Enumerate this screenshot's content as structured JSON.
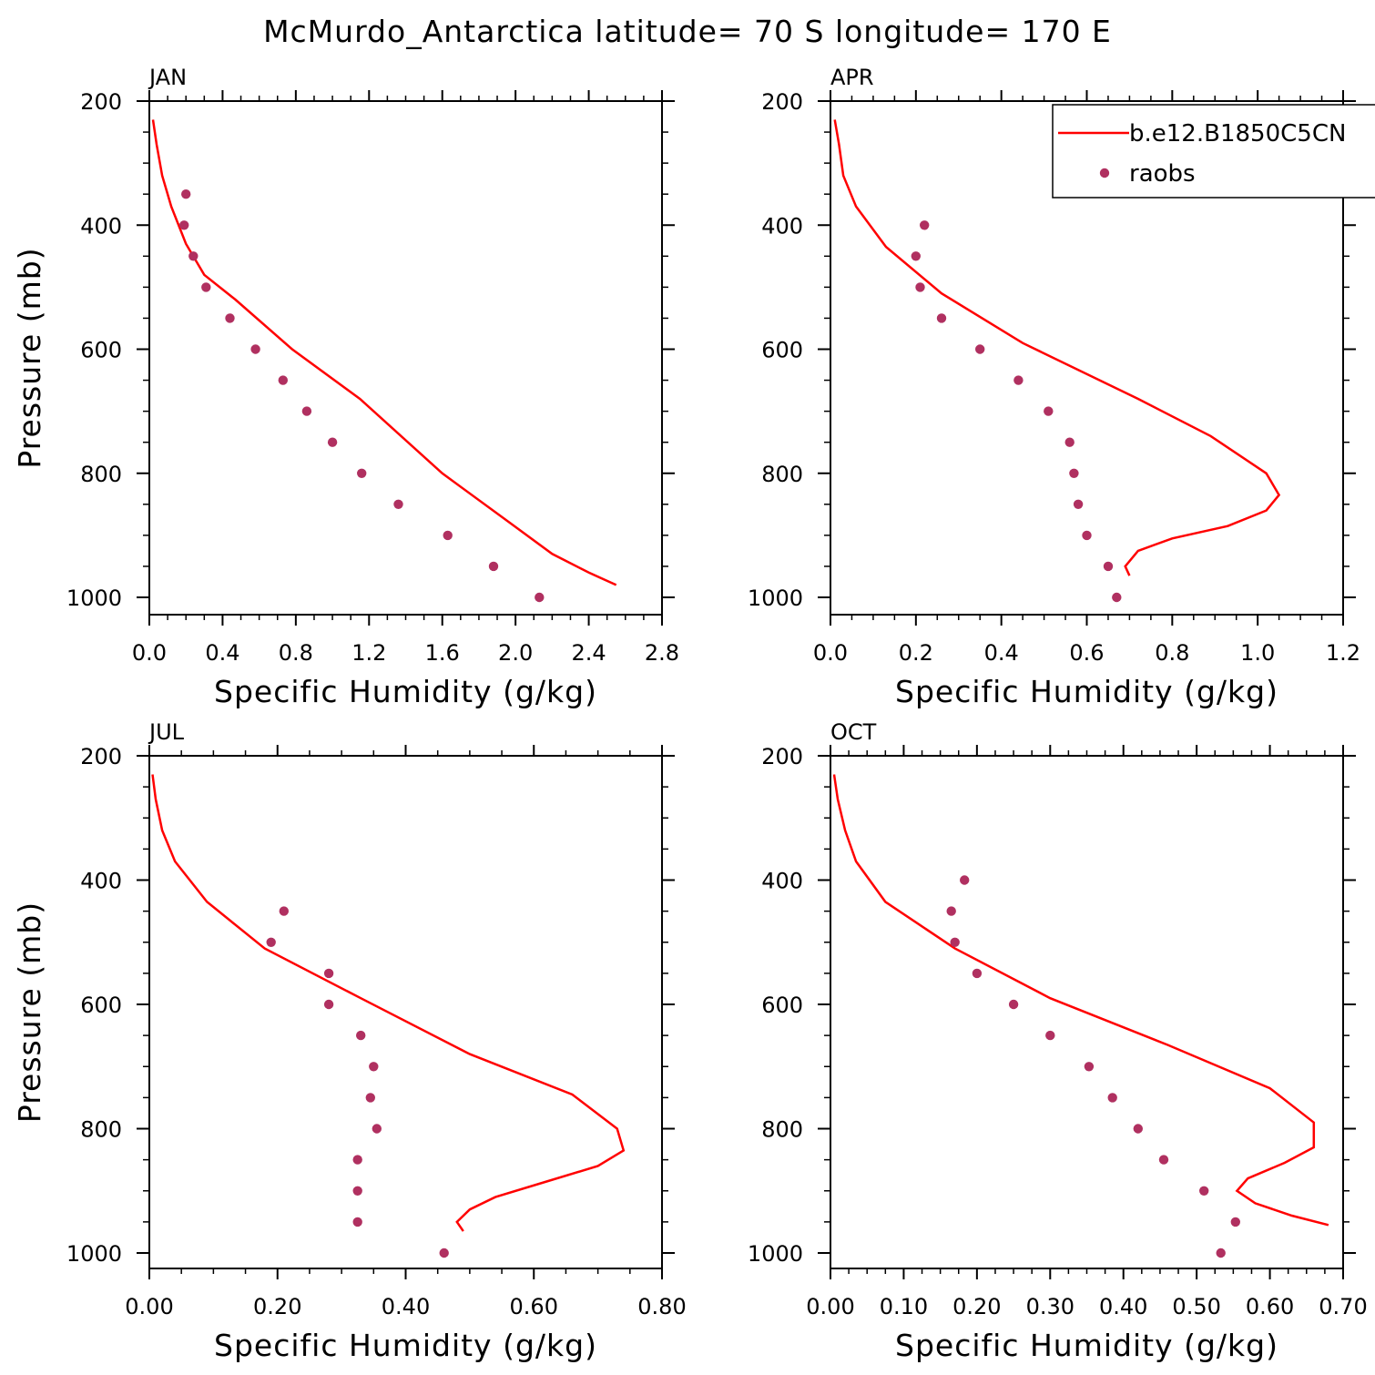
{
  "title": "McMurdo_Antarctica  latitude= 70 S longitude= 170 E",
  "colors": {
    "model_line": "#ff0000",
    "obs_marker": "#b03060",
    "axes": "#000000"
  },
  "legend": {
    "entries": [
      {
        "label": "b.e12.B1850C5CN",
        "marker": "line"
      },
      {
        "label": "raobs",
        "marker": "dot"
      }
    ],
    "placement": "top-right of APR panel"
  },
  "chart_data": [
    {
      "type": "line+scatter",
      "panel": "JAN",
      "xlabel": "Specific Humidity (g/kg)",
      "ylabel": "Pressure (mb)",
      "xlim": [
        0,
        2.8
      ],
      "ylim": [
        200,
        1030
      ],
      "y_inverted": true,
      "xticks": [
        "0.0",
        "0.4",
        "0.8",
        "1.2",
        "1.6",
        "2.0",
        "2.4",
        "2.8"
      ],
      "yticks": [
        "200",
        "400",
        "600",
        "800",
        "1000"
      ],
      "series": [
        {
          "name": "b.e12.B1850C5CN",
          "kind": "line",
          "points": [
            [
              0.02,
              230
            ],
            [
              0.04,
              270
            ],
            [
              0.07,
              320
            ],
            [
              0.12,
              370
            ],
            [
              0.2,
              430
            ],
            [
              0.3,
              480
            ],
            [
              0.47,
              520
            ],
            [
              0.78,
              600
            ],
            [
              1.15,
              680
            ],
            [
              1.6,
              800
            ],
            [
              1.97,
              880
            ],
            [
              2.2,
              930
            ],
            [
              2.4,
              960
            ],
            [
              2.55,
              980
            ]
          ]
        },
        {
          "name": "raobs",
          "kind": "scatter",
          "points": [
            [
              0.2,
              350
            ],
            [
              0.19,
              400
            ],
            [
              0.24,
              450
            ],
            [
              0.31,
              500
            ],
            [
              0.44,
              550
            ],
            [
              0.58,
              600
            ],
            [
              0.73,
              650
            ],
            [
              0.86,
              700
            ],
            [
              1.0,
              750
            ],
            [
              1.16,
              800
            ],
            [
              1.36,
              850
            ],
            [
              1.63,
              900
            ],
            [
              1.88,
              950
            ],
            [
              2.13,
              1000
            ]
          ]
        }
      ]
    },
    {
      "type": "line+scatter",
      "panel": "APR",
      "xlabel": "Specific Humidity (g/kg)",
      "ylabel": "Pressure (mb)",
      "xlim": [
        0,
        1.2
      ],
      "ylim": [
        200,
        1030
      ],
      "y_inverted": true,
      "xticks": [
        "0.0",
        "0.2",
        "0.4",
        "0.6",
        "0.8",
        "1.0",
        "1.2"
      ],
      "yticks": [
        "200",
        "400",
        "600",
        "800",
        "1000"
      ],
      "series": [
        {
          "name": "b.e12.B1850C5CN",
          "kind": "line",
          "points": [
            [
              0.01,
              230
            ],
            [
              0.02,
              270
            ],
            [
              0.03,
              320
            ],
            [
              0.06,
              370
            ],
            [
              0.13,
              435
            ],
            [
              0.26,
              510
            ],
            [
              0.45,
              590
            ],
            [
              0.72,
              680
            ],
            [
              0.89,
              740
            ],
            [
              1.02,
              800
            ],
            [
              1.05,
              835
            ],
            [
              1.02,
              860
            ],
            [
              0.93,
              885
            ],
            [
              0.8,
              905
            ],
            [
              0.72,
              925
            ],
            [
              0.69,
              950
            ],
            [
              0.7,
              965
            ]
          ]
        },
        {
          "name": "raobs",
          "kind": "scatter",
          "points": [
            [
              0.22,
              400
            ],
            [
              0.2,
              450
            ],
            [
              0.21,
              500
            ],
            [
              0.26,
              550
            ],
            [
              0.35,
              600
            ],
            [
              0.44,
              650
            ],
            [
              0.51,
              700
            ],
            [
              0.56,
              750
            ],
            [
              0.57,
              800
            ],
            [
              0.58,
              850
            ],
            [
              0.6,
              900
            ],
            [
              0.65,
              950
            ],
            [
              0.67,
              1000
            ]
          ]
        }
      ]
    },
    {
      "type": "line+scatter",
      "panel": "JUL",
      "xlabel": "Specific Humidity (g/kg)",
      "ylabel": "Pressure (mb)",
      "xlim": [
        0,
        0.8
      ],
      "ylim": [
        200,
        1030
      ],
      "y_inverted": true,
      "xticks": [
        "0.00",
        "0.20",
        "0.40",
        "0.60",
        "0.80"
      ],
      "yticks": [
        "200",
        "400",
        "600",
        "800",
        "1000"
      ],
      "series": [
        {
          "name": "b.e12.B1850C5CN",
          "kind": "line",
          "points": [
            [
              0.005,
              230
            ],
            [
              0.01,
              270
            ],
            [
              0.02,
              320
            ],
            [
              0.04,
              370
            ],
            [
              0.09,
              435
            ],
            [
              0.18,
              510
            ],
            [
              0.33,
              590
            ],
            [
              0.5,
              680
            ],
            [
              0.66,
              745
            ],
            [
              0.73,
              800
            ],
            [
              0.74,
              835
            ],
            [
              0.7,
              860
            ],
            [
              0.62,
              885
            ],
            [
              0.54,
              910
            ],
            [
              0.5,
              930
            ],
            [
              0.48,
              950
            ],
            [
              0.49,
              965
            ]
          ]
        },
        {
          "name": "raobs",
          "kind": "scatter",
          "points": [
            [
              0.21,
              450
            ],
            [
              0.19,
              500
            ],
            [
              0.28,
              550
            ],
            [
              0.28,
              600
            ],
            [
              0.33,
              650
            ],
            [
              0.35,
              700
            ],
            [
              0.345,
              750
            ],
            [
              0.355,
              800
            ],
            [
              0.325,
              850
            ],
            [
              0.325,
              900
            ],
            [
              0.325,
              950
            ],
            [
              0.46,
              1000
            ]
          ]
        }
      ]
    },
    {
      "type": "line+scatter",
      "panel": "OCT",
      "xlabel": "Specific Humidity (g/kg)",
      "ylabel": "Pressure (mb)",
      "xlim": [
        0,
        0.7
      ],
      "ylim": [
        200,
        1030
      ],
      "y_inverted": true,
      "xticks": [
        "0.00",
        "0.10",
        "0.20",
        "0.30",
        "0.40",
        "0.50",
        "0.60",
        "0.70"
      ],
      "yticks": [
        "200",
        "400",
        "600",
        "800",
        "1000"
      ],
      "series": [
        {
          "name": "b.e12.B1850C5CN",
          "kind": "line",
          "points": [
            [
              0.005,
              230
            ],
            [
              0.01,
              270
            ],
            [
              0.02,
              320
            ],
            [
              0.035,
              370
            ],
            [
              0.075,
              435
            ],
            [
              0.17,
              510
            ],
            [
              0.3,
              590
            ],
            [
              0.46,
              665
            ],
            [
              0.6,
              735
            ],
            [
              0.66,
              790
            ],
            [
              0.66,
              830
            ],
            [
              0.62,
              855
            ],
            [
              0.57,
              880
            ],
            [
              0.555,
              900
            ],
            [
              0.58,
              920
            ],
            [
              0.63,
              940
            ],
            [
              0.68,
              955
            ]
          ]
        },
        {
          "name": "raobs",
          "kind": "scatter",
          "points": [
            [
              0.183,
              400
            ],
            [
              0.165,
              450
            ],
            [
              0.17,
              500
            ],
            [
              0.2,
              550
            ],
            [
              0.25,
              600
            ],
            [
              0.3,
              650
            ],
            [
              0.353,
              700
            ],
            [
              0.385,
              750
            ],
            [
              0.42,
              800
            ],
            [
              0.455,
              850
            ],
            [
              0.51,
              900
            ],
            [
              0.553,
              950
            ],
            [
              0.533,
              1000
            ]
          ]
        }
      ]
    }
  ]
}
